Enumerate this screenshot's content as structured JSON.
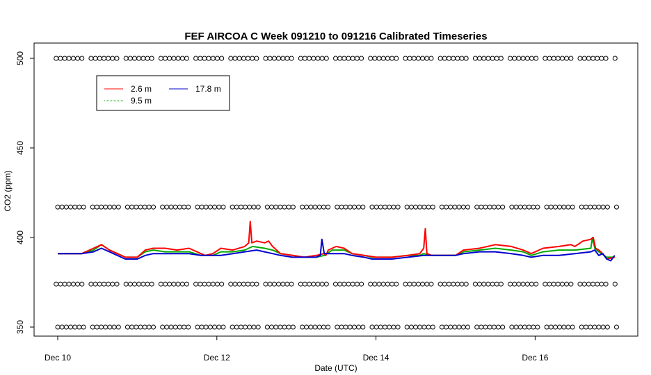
{
  "chart_data": {
    "type": "line",
    "title": "FEF AIRCOA C  Week 091210 to 091216  Calibrated Timeseries",
    "xlabel": "Date (UTC)",
    "ylabel": "CO2 (ppm)",
    "xlim": [
      0,
      7.1
    ],
    "ylim": [
      345,
      505
    ],
    "x_ticks": [
      {
        "value": 0,
        "label": "Dec 10"
      },
      {
        "value": 2,
        "label": "Dec 12"
      },
      {
        "value": 4,
        "label": "Dec 14"
      },
      {
        "value": 6,
        "label": "Dec 16"
      }
    ],
    "y_ticks": [
      350,
      400,
      450,
      500
    ],
    "x_unit": "days since Dec 10 00:00 UTC",
    "legend": {
      "placement": "top-left",
      "entries": [
        {
          "name": "2.6 m",
          "color": "#ff0000"
        },
        {
          "name": "9.5 m",
          "color": "#00aa00"
        },
        {
          "name": "17.8 m",
          "color": "#0000cc"
        }
      ]
    },
    "series": [
      {
        "name": "2.6 m",
        "color": "#ff0000",
        "x": [
          0,
          0.3,
          0.45,
          0.55,
          0.65,
          0.75,
          0.85,
          1.0,
          1.1,
          1.2,
          1.35,
          1.5,
          1.65,
          1.8,
          1.85,
          1.95,
          2.05,
          2.2,
          2.35,
          2.4,
          2.42,
          2.44,
          2.5,
          2.6,
          2.65,
          2.7,
          2.8,
          2.95,
          3.1,
          3.25,
          3.35,
          3.37,
          3.4,
          3.5,
          3.6,
          3.7,
          3.85,
          4.0,
          4.2,
          4.4,
          4.55,
          4.6,
          4.62,
          4.64,
          4.7,
          4.85,
          5.0,
          5.1,
          5.3,
          5.5,
          5.7,
          5.85,
          5.95,
          6.1,
          6.3,
          6.45,
          6.5,
          6.6,
          6.7,
          6.73,
          6.76,
          6.8,
          6.85,
          6.9,
          7.0
        ],
        "y": [
          391,
          391,
          394,
          396,
          393,
          391,
          389,
          389,
          393,
          394,
          394,
          393,
          394,
          391,
          390,
          391,
          394,
          393,
          395,
          397,
          409,
          397,
          398,
          397,
          398,
          395,
          391,
          390,
          389,
          390,
          391,
          390,
          393,
          395,
          394,
          391,
          390,
          389,
          389,
          390,
          391,
          394,
          405,
          391,
          390,
          390,
          390,
          393,
          394,
          396,
          395,
          393,
          391,
          394,
          395,
          396,
          395,
          398,
          399,
          400,
          394,
          393,
          391,
          388,
          389
        ]
      },
      {
        "name": "9.5 m",
        "color": "#00aa00",
        "x": [
          0,
          0.3,
          0.45,
          0.55,
          0.65,
          0.75,
          0.85,
          1.0,
          1.1,
          1.2,
          1.35,
          1.5,
          1.65,
          1.8,
          1.95,
          2.05,
          2.2,
          2.35,
          2.45,
          2.6,
          2.7,
          2.8,
          2.95,
          3.1,
          3.25,
          3.35,
          3.45,
          3.6,
          3.7,
          3.85,
          3.95,
          4.0,
          4.2,
          4.4,
          4.55,
          4.6,
          4.7,
          4.85,
          5.0,
          5.1,
          5.3,
          5.5,
          5.7,
          5.85,
          5.95,
          6.1,
          6.3,
          6.5,
          6.7,
          6.72,
          6.75,
          6.8,
          6.9,
          7.0
        ],
        "y": [
          391,
          391,
          393,
          396,
          393,
          391,
          389,
          389,
          392,
          393,
          392,
          392,
          392,
          390,
          390,
          392,
          392,
          393,
          395,
          394,
          393,
          391,
          390,
          389,
          389,
          390,
          393,
          393,
          391,
          390,
          389,
          389,
          389,
          390,
          390,
          391,
          390,
          390,
          390,
          392,
          393,
          394,
          393,
          392,
          390,
          392,
          393,
          393,
          394,
          400,
          394,
          392,
          389,
          389
        ]
      },
      {
        "name": "17.8 m",
        "color": "#0000cc",
        "x": [
          0,
          0.3,
          0.45,
          0.55,
          0.65,
          0.75,
          0.85,
          1.0,
          1.1,
          1.2,
          1.35,
          1.5,
          1.65,
          1.8,
          1.95,
          2.05,
          2.2,
          2.35,
          2.5,
          2.6,
          2.7,
          2.8,
          2.95,
          3.1,
          3.25,
          3.3,
          3.32,
          3.35,
          3.45,
          3.6,
          3.7,
          3.85,
          3.95,
          4.0,
          4.2,
          4.4,
          4.6,
          4.8,
          5.0,
          5.1,
          5.3,
          5.5,
          5.7,
          5.85,
          5.95,
          6.1,
          6.3,
          6.5,
          6.7,
          6.75,
          6.8,
          6.85,
          6.9,
          6.95,
          7.0
        ],
        "y": [
          391,
          391,
          392,
          394,
          392,
          390,
          388,
          388,
          390,
          391,
          391,
          391,
          391,
          390,
          390,
          390,
          391,
          392,
          393,
          392,
          391,
          390,
          389,
          389,
          389,
          390,
          399,
          391,
          391,
          391,
          390,
          389,
          388,
          388,
          388,
          389,
          390,
          390,
          390,
          391,
          392,
          392,
          391,
          390,
          389,
          390,
          390,
          391,
          392,
          393,
          390,
          391,
          388,
          387,
          390
        ]
      }
    ],
    "marker_rows": [
      {
        "y": 500,
        "color": "#000000"
      },
      {
        "y": 417,
        "color": "#000000"
      },
      {
        "y": 374,
        "color": "#000000"
      },
      {
        "y": 350,
        "color": "#000000"
      }
    ]
  }
}
